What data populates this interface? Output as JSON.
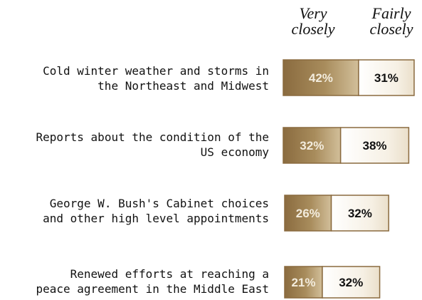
{
  "chart_data": {
    "type": "bar",
    "stacked": true,
    "orientation": "horizontal",
    "categories": [
      "Cold winter weather and storms in\nthe Northeast and Midwest",
      "Reports about the condition of the\nUS economy",
      "George W. Bush's Cabinet choices\nand other high level appointments",
      "Renewed efforts at reaching a\npeace agreement in the Middle East"
    ],
    "series": [
      {
        "name": "Very\nclosely",
        "values": [
          42,
          32,
          26,
          21
        ],
        "labels": [
          "42%",
          "32%",
          "26%",
          "21%"
        ],
        "color": "#9a7e4e"
      },
      {
        "name": "Fairly\nclosely",
        "values": [
          31,
          38,
          32,
          32
        ],
        "labels": [
          "31%",
          "38%",
          "32%",
          "32%"
        ],
        "color": "#fbf8f2"
      }
    ],
    "legend": "top",
    "grid": false
  },
  "colors": {
    "dark_segment": "#9a7e4e",
    "light_segment": "#fbf8f2",
    "border": "#8a6a3e"
  }
}
